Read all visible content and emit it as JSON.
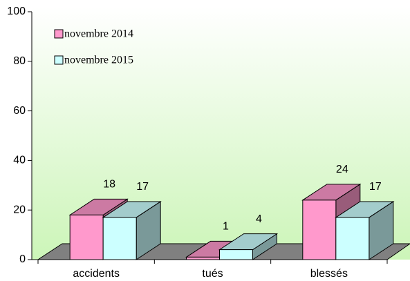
{
  "chart_data": {
    "type": "bar3d",
    "categories": [
      "accidents",
      "tués",
      "blessés"
    ],
    "series": [
      {
        "name": "novembre 2014",
        "color": "#ff99cc",
        "values": [
          18,
          1,
          24
        ]
      },
      {
        "name": "novembre 2015",
        "color": "#ccffff",
        "values": [
          17,
          4,
          17
        ]
      }
    ],
    "ylim": [
      0,
      100
    ],
    "yticks": [
      0,
      20,
      40,
      60,
      80,
      100
    ],
    "legend": "top-left"
  }
}
